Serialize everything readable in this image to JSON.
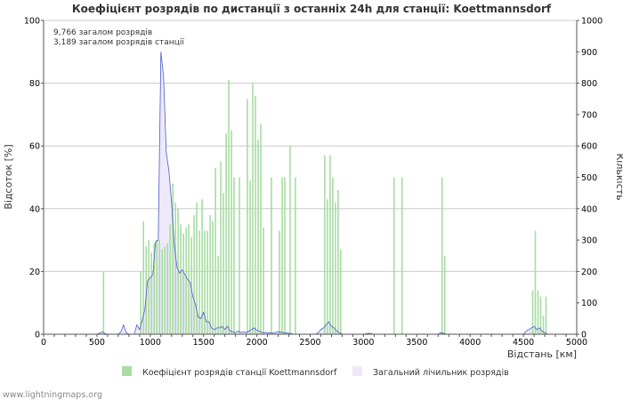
{
  "chart_data": {
    "type": "bar",
    "title": "Коефіцієнт розрядів по дистанції з останніх 24h для станції: Koettmannsdorf",
    "xlabel": "Відстань   [км]",
    "ylabel_left": "Відсоток   [%]",
    "ylabel_right": "Кількість",
    "xlim": [
      0,
      5000
    ],
    "ylim_left": [
      0,
      100
    ],
    "ylim_right": [
      0,
      1000
    ],
    "x_ticks": [
      "0",
      "500",
      "1000",
      "1500",
      "2000",
      "2500",
      "3000",
      "3500",
      "4000",
      "4500",
      "5000"
    ],
    "y_left_ticks": [
      "0",
      "20",
      "40",
      "60",
      "80",
      "100"
    ],
    "y_right_ticks": [
      "0",
      "100",
      "200",
      "300",
      "400",
      "500",
      "600",
      "700",
      "800",
      "900",
      "1000"
    ],
    "annotations": [
      "9,766 загалом розрядів",
      "3,189 загалом розрядів станції"
    ],
    "bin_width_km": 25,
    "series": [
      {
        "name": "Коефіцієнт розрядів станції Koettmannsdorf",
        "axis": "left",
        "kind": "bar",
        "color": "#a8dca2",
        "points": [
          [
            550,
            20
          ],
          [
            900,
            20
          ],
          [
            925,
            36
          ],
          [
            950,
            28
          ],
          [
            975,
            30
          ],
          [
            1000,
            26
          ],
          [
            1025,
            29
          ],
          [
            1050,
            30
          ],
          [
            1075,
            30
          ],
          [
            1100,
            27
          ],
          [
            1125,
            28
          ],
          [
            1150,
            29
          ],
          [
            1175,
            35
          ],
          [
            1200,
            48
          ],
          [
            1225,
            42
          ],
          [
            1250,
            40
          ],
          [
            1275,
            35
          ],
          [
            1300,
            32
          ],
          [
            1325,
            34
          ],
          [
            1350,
            35
          ],
          [
            1375,
            31
          ],
          [
            1400,
            38
          ],
          [
            1425,
            42
          ],
          [
            1450,
            33
          ],
          [
            1475,
            43
          ],
          [
            1500,
            33
          ],
          [
            1525,
            33
          ],
          [
            1550,
            38
          ],
          [
            1575,
            36
          ],
          [
            1600,
            53
          ],
          [
            1625,
            25
          ],
          [
            1650,
            55
          ],
          [
            1675,
            45
          ],
          [
            1700,
            64
          ],
          [
            1725,
            81
          ],
          [
            1750,
            65
          ],
          [
            1775,
            50
          ],
          [
            1825,
            50
          ],
          [
            1900,
            75
          ],
          [
            1925,
            49
          ],
          [
            1950,
            80
          ],
          [
            1975,
            76
          ],
          [
            2000,
            62
          ],
          [
            2025,
            67
          ],
          [
            2050,
            34
          ],
          [
            2125,
            50
          ],
          [
            2200,
            33
          ],
          [
            2225,
            50
          ],
          [
            2250,
            50
          ],
          [
            2300,
            60
          ],
          [
            2350,
            50
          ],
          [
            2625,
            57
          ],
          [
            2650,
            43
          ],
          [
            2675,
            57
          ],
          [
            2700,
            50
          ],
          [
            2725,
            42
          ],
          [
            2750,
            46
          ],
          [
            2775,
            27
          ],
          [
            3275,
            50
          ],
          [
            3350,
            50
          ],
          [
            3725,
            50
          ],
          [
            3750,
            25
          ],
          [
            4575,
            14
          ],
          [
            4600,
            33
          ],
          [
            4625,
            14
          ],
          [
            4650,
            12
          ],
          [
            4675,
            6
          ],
          [
            4700,
            12
          ]
        ]
      },
      {
        "name": "Загальний лічильник розрядів",
        "axis": "right",
        "kind": "area",
        "color": "#ede9fb",
        "line_color": "#4a5cc8",
        "points": [
          [
            0,
            0
          ],
          [
            500,
            0
          ],
          [
            525,
            3
          ],
          [
            550,
            8
          ],
          [
            575,
            2
          ],
          [
            600,
            0
          ],
          [
            700,
            0
          ],
          [
            725,
            8
          ],
          [
            750,
            30
          ],
          [
            775,
            5
          ],
          [
            800,
            0
          ],
          [
            850,
            0
          ],
          [
            875,
            30
          ],
          [
            900,
            15
          ],
          [
            925,
            45
          ],
          [
            950,
            80
          ],
          [
            975,
            170
          ],
          [
            1000,
            180
          ],
          [
            1025,
            190
          ],
          [
            1050,
            295
          ],
          [
            1075,
            300
          ],
          [
            1100,
            900
          ],
          [
            1125,
            820
          ],
          [
            1150,
            580
          ],
          [
            1175,
            520
          ],
          [
            1200,
            420
          ],
          [
            1225,
            285
          ],
          [
            1250,
            215
          ],
          [
            1275,
            195
          ],
          [
            1300,
            205
          ],
          [
            1325,
            190
          ],
          [
            1350,
            175
          ],
          [
            1375,
            165
          ],
          [
            1400,
            120
          ],
          [
            1425,
            95
          ],
          [
            1450,
            55
          ],
          [
            1475,
            50
          ],
          [
            1500,
            70
          ],
          [
            1525,
            40
          ],
          [
            1550,
            40
          ],
          [
            1575,
            20
          ],
          [
            1600,
            15
          ],
          [
            1625,
            20
          ],
          [
            1650,
            20
          ],
          [
            1675,
            25
          ],
          [
            1700,
            15
          ],
          [
            1725,
            25
          ],
          [
            1750,
            10
          ],
          [
            1775,
            8
          ],
          [
            1800,
            5
          ],
          [
            1825,
            10
          ],
          [
            1850,
            5
          ],
          [
            1875,
            8
          ],
          [
            1900,
            5
          ],
          [
            1925,
            10
          ],
          [
            1950,
            15
          ],
          [
            1975,
            20
          ],
          [
            2000,
            12
          ],
          [
            2025,
            10
          ],
          [
            2050,
            5
          ],
          [
            2100,
            5
          ],
          [
            2150,
            3
          ],
          [
            2200,
            8
          ],
          [
            2250,
            5
          ],
          [
            2300,
            3
          ],
          [
            2350,
            0
          ],
          [
            2550,
            0
          ],
          [
            2575,
            5
          ],
          [
            2600,
            15
          ],
          [
            2625,
            20
          ],
          [
            2650,
            30
          ],
          [
            2675,
            40
          ],
          [
            2700,
            25
          ],
          [
            2725,
            20
          ],
          [
            2750,
            10
          ],
          [
            2775,
            5
          ],
          [
            2800,
            0
          ],
          [
            3000,
            0
          ],
          [
            3050,
            3
          ],
          [
            3100,
            0
          ],
          [
            3700,
            0
          ],
          [
            3725,
            5
          ],
          [
            3750,
            3
          ],
          [
            3775,
            0
          ],
          [
            4500,
            0
          ],
          [
            4525,
            10
          ],
          [
            4550,
            15
          ],
          [
            4575,
            20
          ],
          [
            4600,
            25
          ],
          [
            4625,
            15
          ],
          [
            4650,
            20
          ],
          [
            4675,
            10
          ],
          [
            4700,
            5
          ],
          [
            4725,
            0
          ],
          [
            5000,
            0
          ]
        ]
      }
    ]
  },
  "footer": "www.lightningmaps.org"
}
